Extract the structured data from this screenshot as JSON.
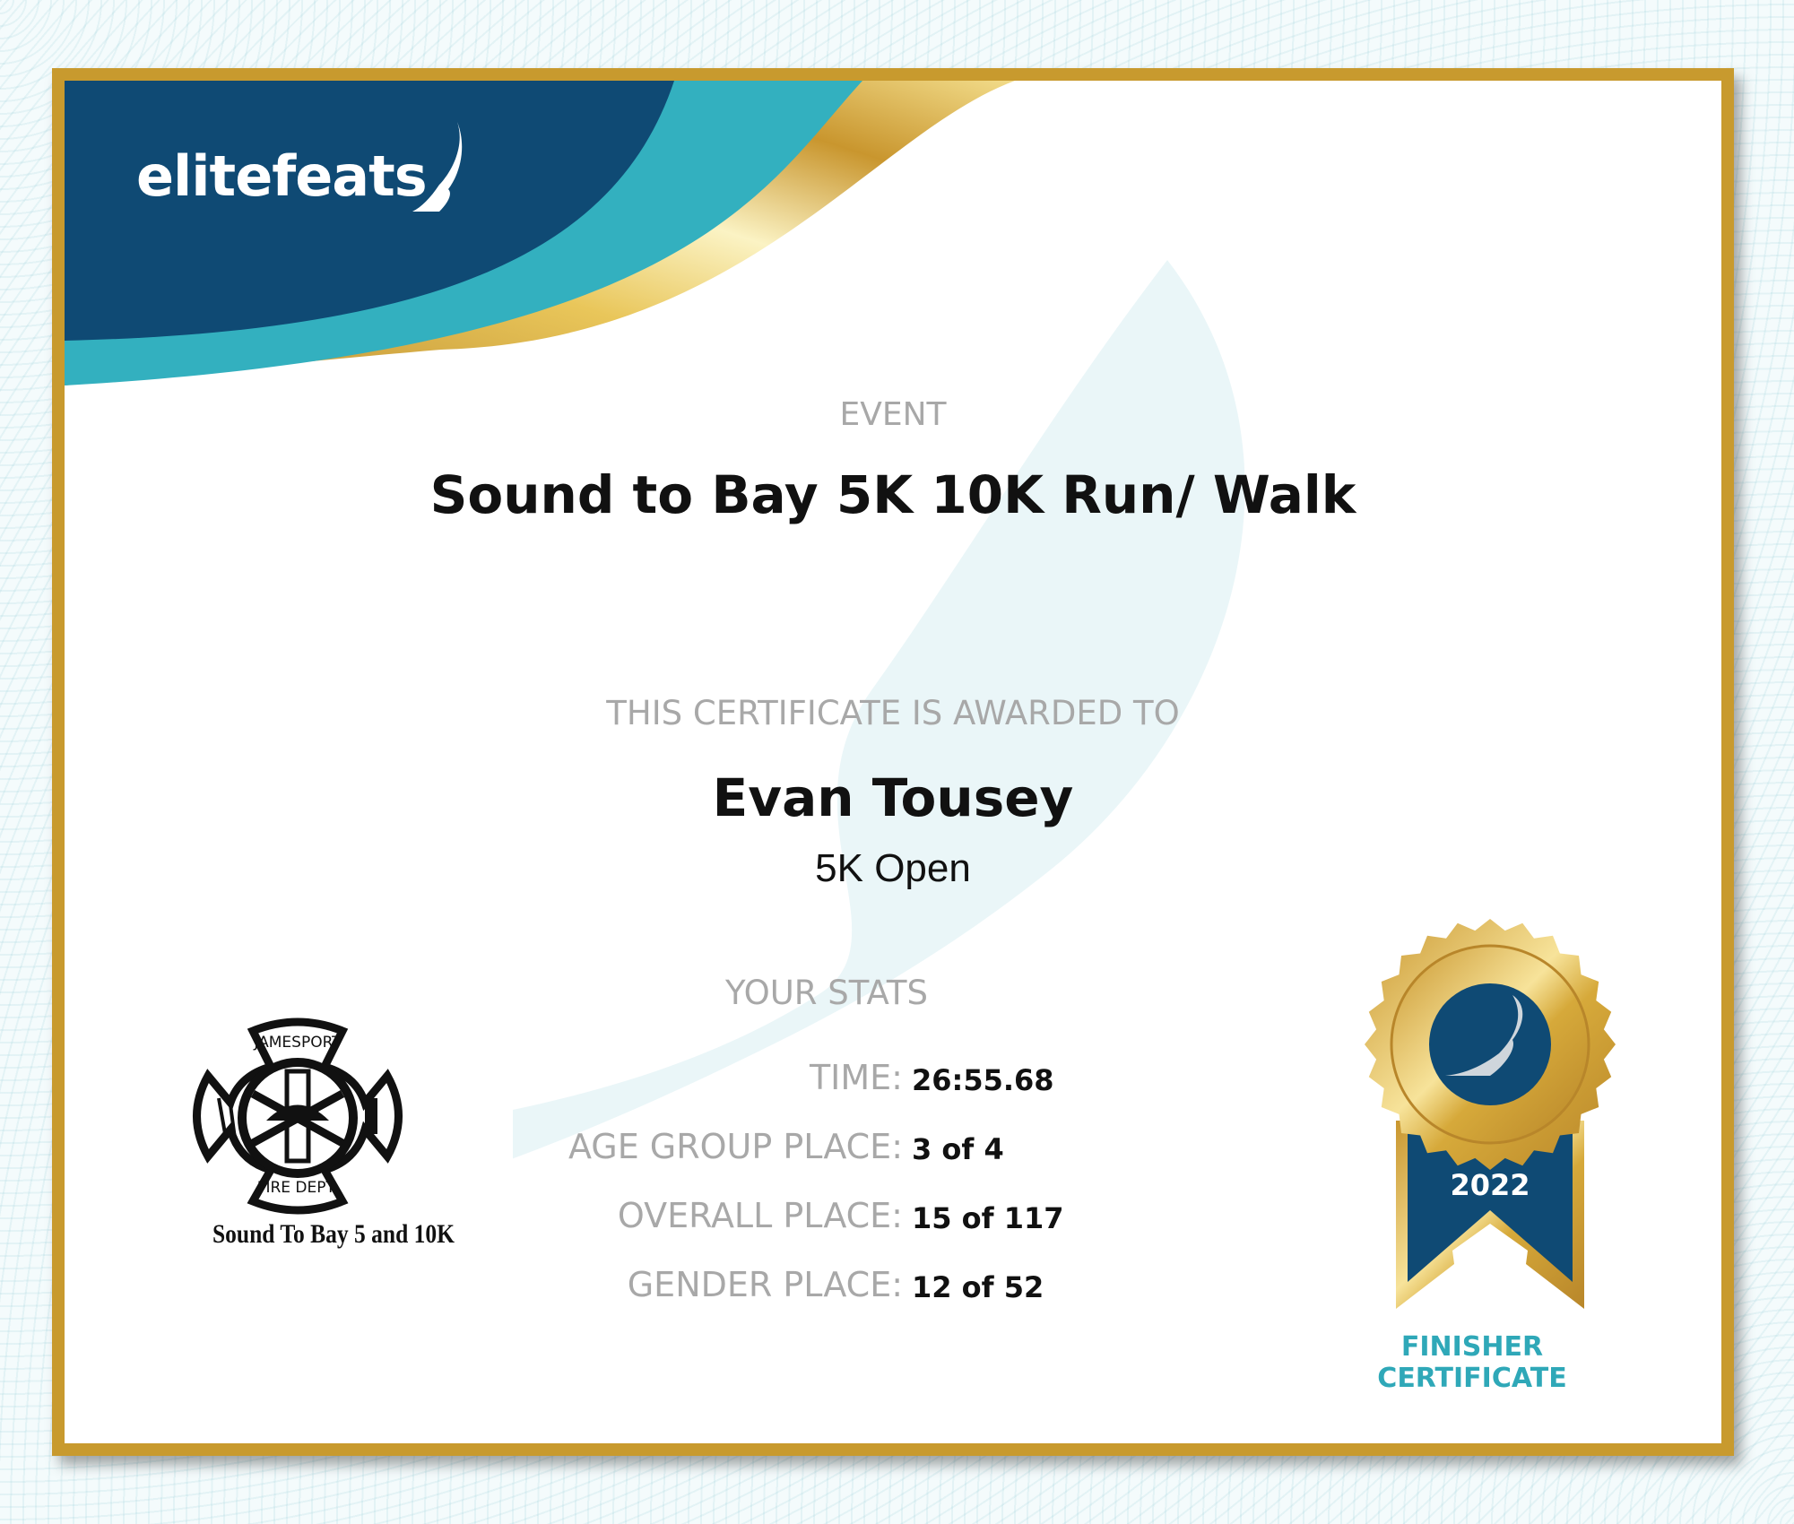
{
  "brand": {
    "logo_text": "elitefeats",
    "colors": {
      "navy": "#0f4a74",
      "teal": "#33b0bf",
      "gold": "#c89a2e"
    }
  },
  "event": {
    "label": "EVENT",
    "title": "Sound to Bay 5K 10K Run/ Walk"
  },
  "award": {
    "label": "THIS CERTIFICATE IS AWARDED TO",
    "name": "Evan Tousey",
    "division": "5K Open"
  },
  "stats": {
    "title": "YOUR STATS",
    "rows": [
      {
        "label": "TIME:",
        "value": "26:55.68"
      },
      {
        "label": "AGE GROUP PLACE:",
        "value": "3 of 4"
      },
      {
        "label": "OVERALL PLACE:",
        "value": "15 of 117"
      },
      {
        "label": "GENDER PLACE:",
        "value": "12 of 52"
      }
    ]
  },
  "sponsor": {
    "top_text": "JAMESPORT",
    "bottom_text": "FIRE DEPT.",
    "caption": "Sound To Bay 5 and 10K"
  },
  "medal": {
    "year": "2022",
    "line1": "FINISHER",
    "line2": "CERTIFICATE",
    "icon": "winged-foot-icon"
  }
}
